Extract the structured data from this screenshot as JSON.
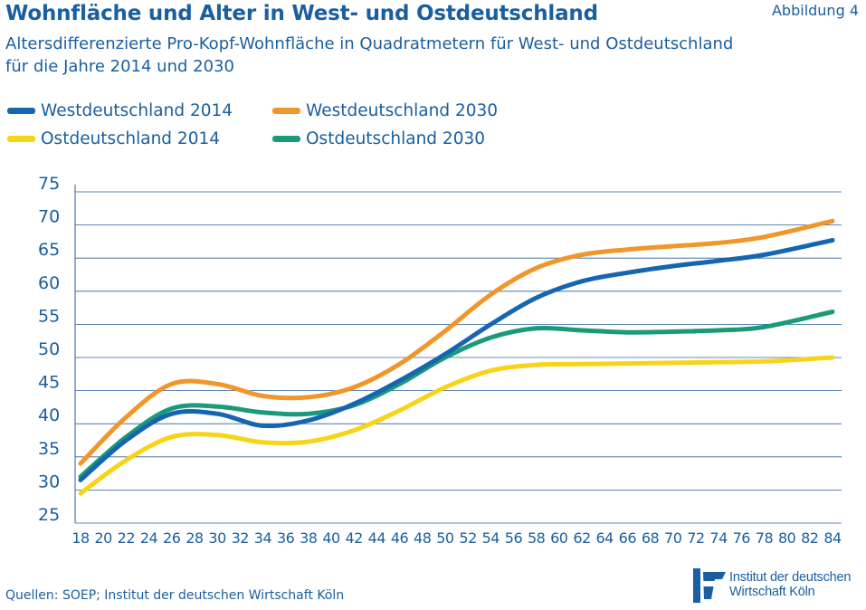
{
  "header": {
    "title": "Wohnfläche und Alter in West- und Ostdeutschland",
    "figure_label": "Abbildung 4",
    "subtitle_line1": "Altersdifferenzierte Pro-Kopf-Wohnfläche in Quadratmetern für West- und Ostdeutschland",
    "subtitle_line2": "für die Jahre 2014 und 2030"
  },
  "footer": {
    "source": "Quellen: SOEP; Institut der deutschen Wirtschaft Köln",
    "logo_line1": "Institut der deutschen",
    "logo_line2": "Wirtschaft Köln"
  },
  "colors": {
    "text": "#1a5fa0",
    "grid": "#2a5f9e",
    "west2014": "#1565b0",
    "west2030": "#f0962a",
    "ost2014": "#f7d417",
    "ost2030": "#1a9a78"
  },
  "chart_data": {
    "type": "line",
    "title": "Wohnfläche und Alter in West- und Ostdeutschland",
    "xlabel": "",
    "ylabel": "",
    "ylim": [
      25,
      75
    ],
    "xlim": [
      18,
      84
    ],
    "grid": true,
    "legend_position": "top-left",
    "x_ticks": [
      18,
      20,
      22,
      24,
      26,
      28,
      30,
      32,
      34,
      36,
      38,
      40,
      42,
      44,
      46,
      48,
      50,
      52,
      54,
      56,
      58,
      60,
      62,
      64,
      66,
      68,
      70,
      72,
      74,
      76,
      78,
      80,
      82,
      84
    ],
    "y_ticks": [
      25,
      30,
      35,
      40,
      45,
      50,
      55,
      60,
      65,
      70,
      75
    ],
    "series": [
      {
        "name": "Westdeutschland 2014",
        "color_key": "west2014",
        "x": [
          18,
          22,
          26,
          30,
          34,
          38,
          42,
          46,
          50,
          54,
          58,
          62,
          66,
          70,
          74,
          78,
          84
        ],
        "values": [
          31.5,
          37.5,
          41.5,
          41.5,
          39.7,
          40.5,
          43,
          46.5,
          50.5,
          55,
          59,
          61.5,
          62.8,
          63.8,
          64.6,
          65.5,
          67.7
        ]
      },
      {
        "name": "Westdeutschland 2030",
        "color_key": "west2030",
        "x": [
          18,
          22,
          26,
          30,
          34,
          38,
          42,
          46,
          50,
          54,
          58,
          62,
          66,
          70,
          74,
          78,
          84
        ],
        "values": [
          34,
          41,
          46,
          46,
          44.2,
          44,
          45.5,
          49,
          54,
          59.5,
          63.5,
          65.5,
          66.3,
          66.8,
          67.3,
          68.2,
          70.6
        ]
      },
      {
        "name": "Ostdeutschland 2014",
        "color_key": "ost2014",
        "x": [
          18,
          22,
          26,
          30,
          34,
          38,
          42,
          46,
          50,
          54,
          58,
          62,
          66,
          70,
          74,
          78,
          84
        ],
        "values": [
          29.5,
          34.5,
          38,
          38.3,
          37.2,
          37.3,
          39,
          42,
          45.5,
          48,
          48.9,
          49,
          49.1,
          49.2,
          49.3,
          49.4,
          50
        ]
      },
      {
        "name": "Ostdeutschland 2030",
        "color_key": "ost2030",
        "x": [
          18,
          22,
          26,
          30,
          34,
          38,
          42,
          46,
          50,
          54,
          58,
          62,
          66,
          70,
          74,
          78,
          84
        ],
        "values": [
          32,
          38,
          42.3,
          42.6,
          41.7,
          41.5,
          42.8,
          46,
          50,
          53,
          54.4,
          54.1,
          53.8,
          53.9,
          54.1,
          54.6,
          56.9
        ]
      }
    ]
  }
}
